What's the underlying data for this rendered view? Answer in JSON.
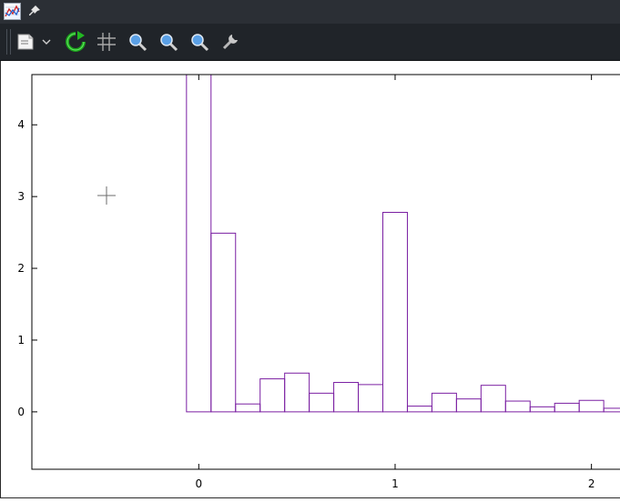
{
  "window": {
    "app_icon": "gnuplot-icon",
    "pin_icon": "pin-icon"
  },
  "toolbar": {
    "buttons": [
      {
        "name": "copy-to-clipboard-button",
        "icon": "clipboard-icon"
      },
      {
        "name": "export-dropdown-button",
        "icon": "chevron-down-icon"
      },
      {
        "name": "replot-button",
        "icon": "refresh-icon"
      },
      {
        "name": "grid-button",
        "icon": "grid-icon"
      },
      {
        "name": "previous-zoom-button",
        "icon": "zoom-icon"
      },
      {
        "name": "next-zoom-button",
        "icon": "zoom-icon"
      },
      {
        "name": "autoscale-button",
        "icon": "zoom-icon"
      },
      {
        "name": "settings-button",
        "icon": "wrench-icon"
      }
    ]
  },
  "chart_data": {
    "type": "bar",
    "style": "histogram-steps",
    "series_color": "#7a1fa2",
    "bin_width": 0.125,
    "bins": [
      {
        "x_start": -0.0625,
        "value": 4.7
      },
      {
        "x_start": 0.0625,
        "value": 2.49
      },
      {
        "x_start": 0.1875,
        "value": 0.11
      },
      {
        "x_start": 0.3125,
        "value": 0.46
      },
      {
        "x_start": 0.4375,
        "value": 0.54
      },
      {
        "x_start": 0.5625,
        "value": 0.26
      },
      {
        "x_start": 0.6875,
        "value": 0.41
      },
      {
        "x_start": 0.8125,
        "value": 0.38
      },
      {
        "x_start": 0.9375,
        "value": 2.78
      },
      {
        "x_start": 1.0625,
        "value": 0.08
      },
      {
        "x_start": 1.1875,
        "value": 0.26
      },
      {
        "x_start": 1.3125,
        "value": 0.18
      },
      {
        "x_start": 1.4375,
        "value": 0.37
      },
      {
        "x_start": 1.5625,
        "value": 0.15
      },
      {
        "x_start": 1.6875,
        "value": 0.07
      },
      {
        "x_start": 1.8125,
        "value": 0.12
      },
      {
        "x_start": 1.9375,
        "value": 0.16
      },
      {
        "x_start": 2.0625,
        "value": 0.05
      }
    ],
    "xlim": [
      -0.85,
      2.15
    ],
    "ylim": [
      -0.8,
      4.7
    ],
    "x_ticks": [
      "0",
      "1",
      "2"
    ],
    "y_ticks": [
      "0",
      "1",
      "2",
      "3",
      "4"
    ],
    "grid": false,
    "title": "",
    "xlabel": "",
    "ylabel": ""
  }
}
